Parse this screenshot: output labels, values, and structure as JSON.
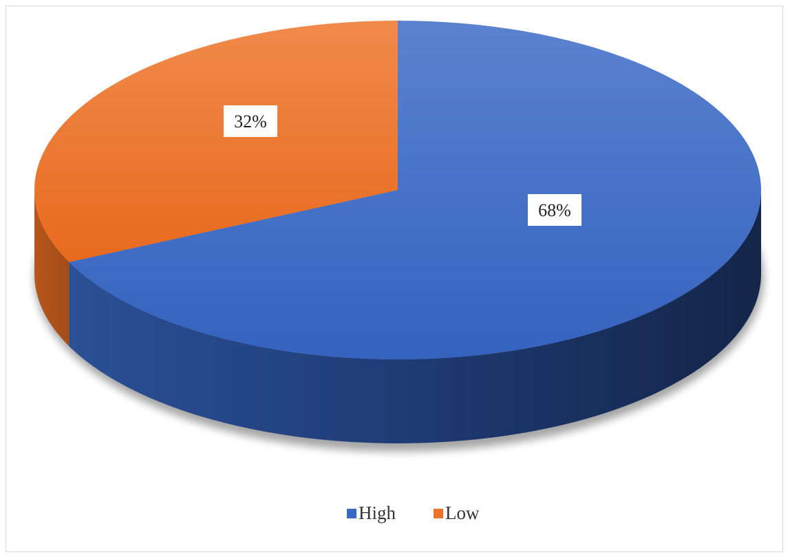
{
  "chart_data": {
    "type": "pie",
    "style": "3d",
    "categories": [
      "High",
      "Low"
    ],
    "values": [
      68,
      32
    ],
    "data_labels": [
      "68%",
      "32%"
    ],
    "colors": [
      "#3a68c4",
      "#ec7328"
    ],
    "legend_position": "bottom"
  }
}
